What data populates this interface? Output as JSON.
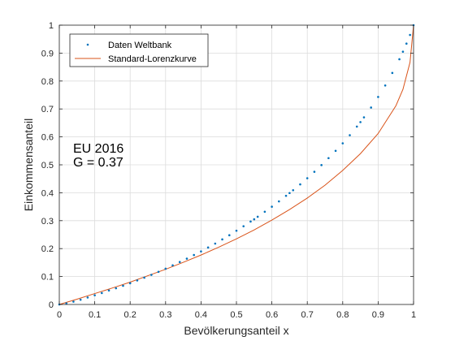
{
  "chart_data": {
    "type": "scatter",
    "xlabel": "Bevölkerungsanteil x",
    "ylabel": "Einkommensanteil",
    "xlim": [
      0,
      1
    ],
    "ylim": [
      0,
      1
    ],
    "grid": true,
    "x_ticks": [
      "0",
      "0.1",
      "0.2",
      "0.3",
      "0.4",
      "0.5",
      "0.6",
      "0.7",
      "0.8",
      "0.9",
      "1"
    ],
    "y_ticks": [
      "0",
      "0.1",
      "0.2",
      "0.3",
      "0.4",
      "0.5",
      "0.6",
      "0.7",
      "0.8",
      "0.9",
      "1"
    ],
    "legend_position": "top-left",
    "annotations": [
      "EU 2016",
      "G = 0.37"
    ],
    "series": [
      {
        "name": "Daten Weltbank",
        "kind": "scatter",
        "color": "#0072BD",
        "x": [
          0.0,
          0.02,
          0.04,
          0.06,
          0.08,
          0.1,
          0.12,
          0.14,
          0.16,
          0.18,
          0.2,
          0.22,
          0.24,
          0.26,
          0.28,
          0.3,
          0.32,
          0.34,
          0.36,
          0.38,
          0.4,
          0.42,
          0.44,
          0.46,
          0.48,
          0.5,
          0.52,
          0.54,
          0.55,
          0.56,
          0.58,
          0.6,
          0.62,
          0.64,
          0.65,
          0.66,
          0.68,
          0.7,
          0.72,
          0.74,
          0.76,
          0.78,
          0.8,
          0.82,
          0.84,
          0.85,
          0.86,
          0.88,
          0.9,
          0.92,
          0.94,
          0.96,
          0.97,
          0.98,
          0.99,
          1.0
        ],
        "y": [
          0.0,
          0.004,
          0.01,
          0.017,
          0.025,
          0.033,
          0.041,
          0.05,
          0.058,
          0.067,
          0.076,
          0.086,
          0.096,
          0.106,
          0.117,
          0.128,
          0.14,
          0.152,
          0.164,
          0.177,
          0.19,
          0.204,
          0.218,
          0.233,
          0.248,
          0.264,
          0.28,
          0.297,
          0.305,
          0.314,
          0.332,
          0.35,
          0.369,
          0.389,
          0.399,
          0.409,
          0.43,
          0.452,
          0.475,
          0.499,
          0.524,
          0.55,
          0.577,
          0.606,
          0.637,
          0.653,
          0.67,
          0.705,
          0.743,
          0.784,
          0.829,
          0.878,
          0.905,
          0.934,
          0.965,
          1.0
        ]
      },
      {
        "name": "Standard-Lorenzkurve",
        "kind": "line",
        "color": "#D95319",
        "x": [
          0.0,
          0.05,
          0.1,
          0.15,
          0.2,
          0.25,
          0.3,
          0.35,
          0.4,
          0.45,
          0.5,
          0.55,
          0.6,
          0.65,
          0.7,
          0.75,
          0.8,
          0.85,
          0.9,
          0.95,
          0.97,
          0.99,
          1.0
        ],
        "y": [
          0.0,
          0.019,
          0.039,
          0.059,
          0.08,
          0.103,
          0.126,
          0.151,
          0.177,
          0.205,
          0.235,
          0.267,
          0.302,
          0.34,
          0.381,
          0.427,
          0.48,
          0.54,
          0.612,
          0.711,
          0.77,
          0.867,
          1.0
        ]
      }
    ]
  }
}
